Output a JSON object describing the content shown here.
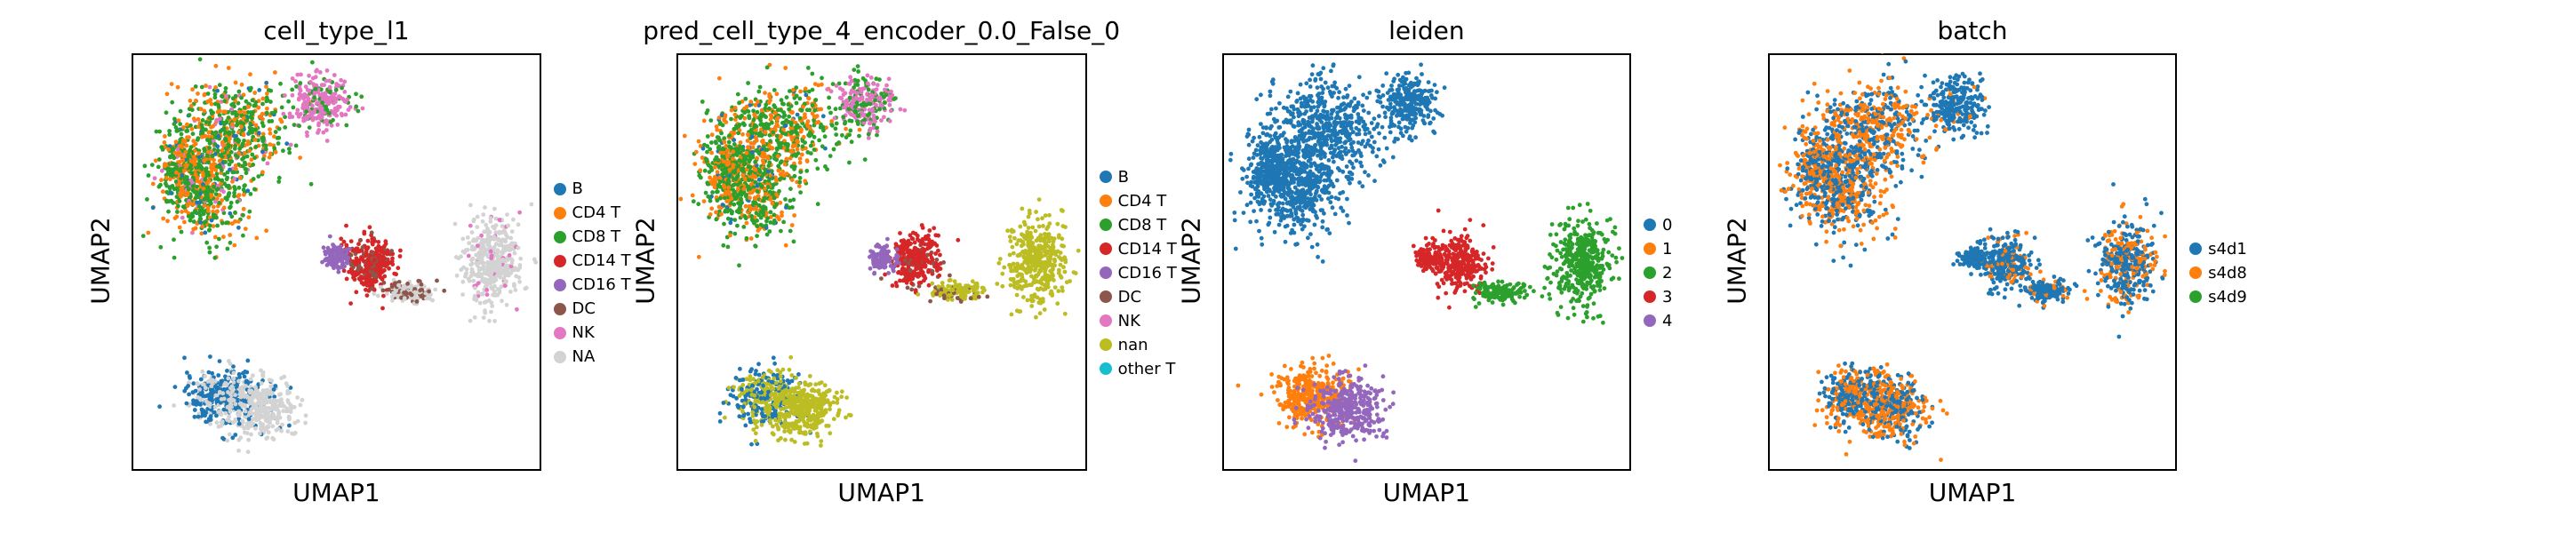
{
  "chart_data": [
    {
      "type": "scatter",
      "title": "cell_type_l1",
      "xlabel": "UMAP1",
      "ylabel": "UMAP2",
      "legend_placement": "right",
      "legend": [
        {
          "label": "B",
          "color": "#1f77b4"
        },
        {
          "label": "CD4 T",
          "color": "#ff7f0e"
        },
        {
          "label": "CD8 T",
          "color": "#2ca02c"
        },
        {
          "label": "CD14 T",
          "color": "#d62728"
        },
        {
          "label": "CD16 T",
          "color": "#9467bd"
        },
        {
          "label": "DC",
          "color": "#8c564b"
        },
        {
          "label": "NK",
          "color": "#e377c2"
        },
        {
          "label": "NA",
          "color": "#d3d3d3"
        }
      ]
    },
    {
      "type": "scatter",
      "title": "pred_cell_type_4_encoder_0.0_False_0",
      "xlabel": "UMAP1",
      "ylabel": "UMAP2",
      "legend_placement": "right",
      "legend": [
        {
          "label": "B",
          "color": "#1f77b4"
        },
        {
          "label": "CD4 T",
          "color": "#ff7f0e"
        },
        {
          "label": "CD8 T",
          "color": "#2ca02c"
        },
        {
          "label": "CD14 T",
          "color": "#d62728"
        },
        {
          "label": "CD16 T",
          "color": "#9467bd"
        },
        {
          "label": "DC",
          "color": "#8c564b"
        },
        {
          "label": "NK",
          "color": "#e377c2"
        },
        {
          "label": "nan",
          "color": "#bcbd22"
        },
        {
          "label": "other T",
          "color": "#17becf"
        }
      ]
    },
    {
      "type": "scatter",
      "title": "leiden",
      "xlabel": "UMAP1",
      "ylabel": "UMAP2",
      "legend_placement": "right",
      "legend": [
        {
          "label": "0",
          "color": "#1f77b4"
        },
        {
          "label": "1",
          "color": "#ff7f0e"
        },
        {
          "label": "2",
          "color": "#2ca02c"
        },
        {
          "label": "3",
          "color": "#d62728"
        },
        {
          "label": "4",
          "color": "#9467bd"
        }
      ]
    },
    {
      "type": "scatter",
      "title": "batch",
      "xlabel": "UMAP1",
      "ylabel": "UMAP2",
      "legend_placement": "right",
      "legend": [
        {
          "label": "s4d1",
          "color": "#1f77b4"
        },
        {
          "label": "s4d8",
          "color": "#ff7f0e"
        },
        {
          "label": "s4d9",
          "color": "#2ca02c"
        }
      ]
    }
  ]
}
